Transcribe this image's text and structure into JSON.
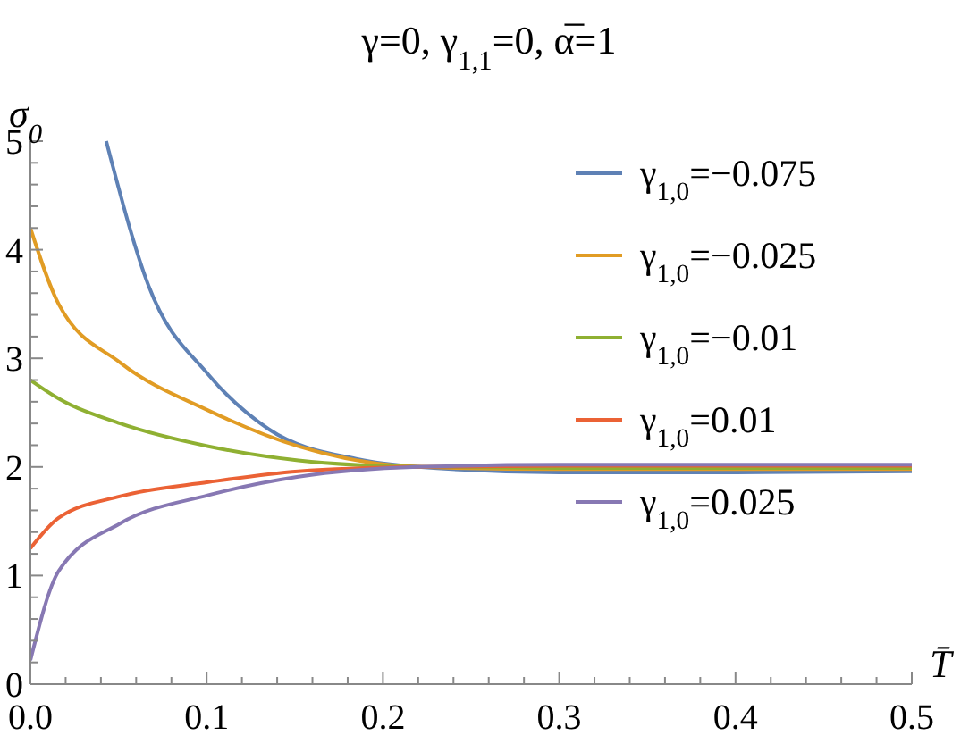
{
  "chart_data": {
    "type": "line",
    "title": "γ=0, γ$_{1,1}$=0, α̅=1",
    "xlabel": "T̄",
    "ylabel": "σ$_{0}$",
    "xlim": [
      0,
      0.5
    ],
    "ylim": [
      0,
      5
    ],
    "xticks": [
      {
        "value": 0,
        "label": "0.0"
      },
      {
        "value": 0.02,
        "label": null
      },
      {
        "value": 0.04,
        "label": null
      },
      {
        "value": 0.06,
        "label": null
      },
      {
        "value": 0.08,
        "label": null
      },
      {
        "value": 0.1,
        "label": "0.1"
      },
      {
        "value": 0.12,
        "label": null
      },
      {
        "value": 0.14,
        "label": null
      },
      {
        "value": 0.16,
        "label": null
      },
      {
        "value": 0.18,
        "label": null
      },
      {
        "value": 0.2,
        "label": "0.2"
      },
      {
        "value": 0.22,
        "label": null
      },
      {
        "value": 0.24,
        "label": null
      },
      {
        "value": 0.26,
        "label": null
      },
      {
        "value": 0.28,
        "label": null
      },
      {
        "value": 0.3,
        "label": "0.3"
      },
      {
        "value": 0.32,
        "label": null
      },
      {
        "value": 0.34,
        "label": null
      },
      {
        "value": 0.36,
        "label": null
      },
      {
        "value": 0.38,
        "label": null
      },
      {
        "value": 0.4,
        "label": "0.4"
      },
      {
        "value": 0.42,
        "label": null
      },
      {
        "value": 0.44,
        "label": null
      },
      {
        "value": 0.46,
        "label": null
      },
      {
        "value": 0.48,
        "label": null
      },
      {
        "value": 0.5,
        "label": "0.5"
      }
    ],
    "yticks": [
      0,
      {
        "value": 0.2,
        "label": null
      },
      {
        "value": 0.4,
        "label": null
      },
      {
        "value": 0.6,
        "label": null
      },
      {
        "value": 0.8,
        "label": null
      },
      1,
      {
        "value": 1.2,
        "label": null
      },
      {
        "value": 1.4,
        "label": null
      },
      {
        "value": 1.6,
        "label": null
      },
      {
        "value": 1.8,
        "label": null
      },
      2,
      {
        "value": 2.2,
        "label": null
      },
      {
        "value": 2.4,
        "label": null
      },
      {
        "value": 2.6,
        "label": null
      },
      {
        "value": 2.8,
        "label": null
      },
      3,
      {
        "value": 3.2,
        "label": null
      },
      {
        "value": 3.4,
        "label": null
      },
      {
        "value": 3.6,
        "label": null
      },
      {
        "value": 3.8,
        "label": null
      },
      4,
      {
        "value": 4.2,
        "label": null
      },
      {
        "value": 4.4,
        "label": null
      },
      {
        "value": 4.6,
        "label": null
      },
      {
        "value": 4.8,
        "label": null
      },
      5
    ],
    "legend": "top right",
    "grid": false,
    "marker": "none",
    "line_style": "solid",
    "series": [
      {
        "name": "γ$_{1,0}$=−0.075",
        "color": "#5e81b5",
        "x": [
          0.043,
          0.067,
          0.101,
          0.135,
          0.186,
          0.22,
          0.3,
          0.4,
          0.5
        ],
        "values": [
          5,
          3.67,
          2.85,
          2.35,
          2.07,
          2.0,
          1.95,
          1.95,
          1.96
        ]
      },
      {
        "name": "γ$_{1,0}$=−0.025",
        "color": "#e19c24",
        "x": [
          0,
          0.016,
          0.051,
          0.101,
          0.152,
          0.22,
          0.3,
          0.4,
          0.5
        ],
        "values": [
          4.2,
          3.5,
          2.96,
          2.52,
          2.19,
          2.0,
          1.98,
          1.98,
          1.98
        ]
      },
      {
        "name": "γ$_{1,0}$=−0.01",
        "color": "#8fb032",
        "x": [
          0,
          0.016,
          0.051,
          0.101,
          0.152,
          0.22,
          0.3,
          0.4,
          0.5
        ],
        "values": [
          2.8,
          2.63,
          2.4,
          2.19,
          2.06,
          2.0,
          1.99,
          1.99,
          1.99
        ]
      },
      {
        "name": "γ$_{1,0}$=0.01",
        "color": "#eb6235",
        "x": [
          0,
          0.016,
          0.051,
          0.101,
          0.152,
          0.22,
          0.3,
          0.4,
          0.5
        ],
        "values": [
          1.25,
          1.53,
          1.73,
          1.86,
          1.96,
          2.0,
          2.01,
          2.01,
          2.01
        ]
      },
      {
        "name": "γ$_{1,0}$=0.025",
        "color": "#8778b3",
        "x": [
          0,
          0.016,
          0.051,
          0.101,
          0.152,
          0.22,
          0.3,
          0.4,
          0.5
        ],
        "values": [
          0.22,
          1.04,
          1.48,
          1.74,
          1.91,
          2.0,
          2.02,
          2.02,
          2.02
        ]
      }
    ]
  }
}
